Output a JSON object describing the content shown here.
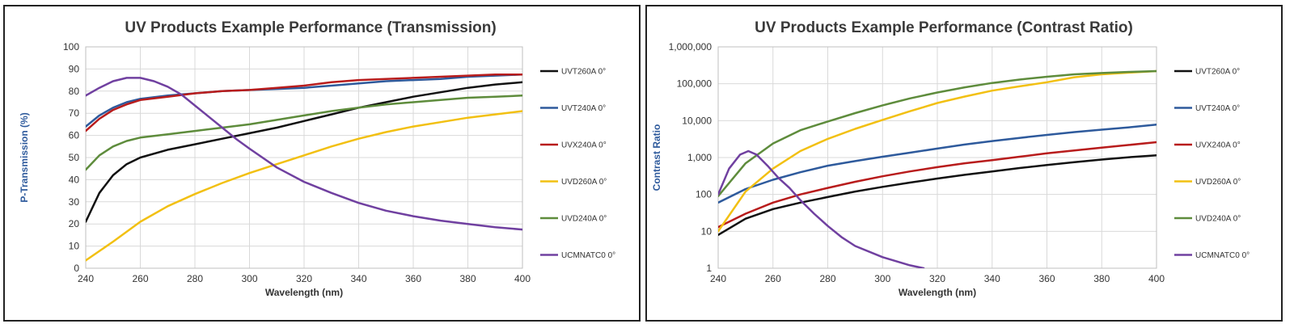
{
  "chart_data": [
    {
      "type": "line",
      "title": "UV Products Example Performance (Transmission)",
      "xlabel": "Wavelength (nm)",
      "ylabel": "P-Transmission (%)",
      "xlim": [
        240,
        400
      ],
      "ylim": [
        0,
        100
      ],
      "yscale": "linear",
      "xticks": [
        240,
        260,
        280,
        300,
        320,
        340,
        360,
        380,
        400
      ],
      "yticks": [
        0,
        10,
        20,
        30,
        40,
        50,
        60,
        70,
        80,
        90,
        100
      ],
      "xtick_labels": [
        "240",
        "260",
        "280",
        "300",
        "320",
        "340",
        "360",
        "380",
        "400"
      ],
      "ytick_labels": [
        "0",
        "10",
        "20",
        "30",
        "40",
        "50",
        "60",
        "70",
        "80",
        "90",
        "100"
      ],
      "grid": true,
      "legend_position": "right",
      "series": [
        {
          "name": "UVT260A 0°",
          "color": "#111111",
          "x": [
            240,
            245,
            250,
            255,
            260,
            270,
            280,
            290,
            300,
            310,
            320,
            330,
            340,
            350,
            360,
            370,
            380,
            390,
            400
          ],
          "y": [
            21,
            34,
            42,
            47,
            50,
            53.5,
            56,
            58.5,
            61,
            63.5,
            66.5,
            69.5,
            72.5,
            75,
            77.5,
            79.5,
            81.5,
            83,
            84
          ]
        },
        {
          "name": "UVT240A 0°",
          "color": "#2e5a9c",
          "x": [
            240,
            245,
            250,
            255,
            260,
            270,
            280,
            290,
            300,
            310,
            320,
            330,
            340,
            350,
            360,
            370,
            380,
            390,
            400
          ],
          "y": [
            64,
            69,
            72.5,
            75,
            76.5,
            78,
            79,
            80,
            80.5,
            81,
            81.5,
            82.5,
            83.5,
            84.5,
            85,
            85.5,
            86.5,
            87,
            87.5
          ]
        },
        {
          "name": "UVX240A 0°",
          "color": "#b81c1c",
          "x": [
            240,
            245,
            250,
            255,
            260,
            270,
            280,
            290,
            300,
            310,
            320,
            330,
            340,
            350,
            360,
            370,
            380,
            390,
            400
          ],
          "y": [
            62,
            67.5,
            71.5,
            74,
            76,
            77.5,
            79,
            80,
            80.5,
            81.5,
            82.5,
            84,
            85,
            85.5,
            86,
            86.5,
            87,
            87.5,
            87.5
          ]
        },
        {
          "name": "UVD260A  0°",
          "color": "#f2c012",
          "x": [
            240,
            250,
            260,
            270,
            280,
            290,
            300,
            310,
            320,
            330,
            340,
            350,
            360,
            370,
            380,
            390,
            400
          ],
          "y": [
            3.5,
            12,
            21,
            28,
            33.5,
            38.5,
            43,
            47,
            51,
            55,
            58.5,
            61.5,
            64,
            66,
            68,
            69.5,
            71
          ]
        },
        {
          "name": "UVD240A 0°",
          "color": "#5e8c3c",
          "x": [
            240,
            245,
            250,
            255,
            260,
            270,
            280,
            290,
            300,
            310,
            320,
            330,
            340,
            350,
            360,
            370,
            380,
            390,
            400
          ],
          "y": [
            44.5,
            51,
            55,
            57.5,
            59,
            60.5,
            62,
            63.5,
            65,
            67,
            69,
            71,
            72.5,
            74,
            75,
            76,
            77,
            77.5,
            78
          ]
        },
        {
          "name": "UCMNATC0 0°",
          "color": "#7040a0",
          "x": [
            240,
            245,
            250,
            255,
            260,
            265,
            270,
            275,
            280,
            285,
            290,
            295,
            300,
            310,
            320,
            330,
            340,
            350,
            360,
            370,
            380,
            390,
            400
          ],
          "y": [
            78,
            81.5,
            84.5,
            86,
            86,
            84.5,
            82,
            78.5,
            73.5,
            68.5,
            63.5,
            58.5,
            54,
            45.5,
            39,
            34,
            29.5,
            26,
            23.5,
            21.5,
            20,
            18.5,
            17.5
          ]
        }
      ]
    },
    {
      "type": "line",
      "title": "UV Products Example Performance (Contrast Ratio)",
      "xlabel": "Wavelength (nm)",
      "ylabel": "Contrast Ratio",
      "xlim": [
        240,
        400
      ],
      "ylim": [
        1,
        1000000
      ],
      "yscale": "log",
      "xticks": [
        240,
        260,
        280,
        300,
        320,
        340,
        360,
        380,
        400
      ],
      "yticks": [
        1,
        10,
        100,
        1000,
        10000,
        100000,
        1000000
      ],
      "xtick_labels": [
        "240",
        "260",
        "280",
        "300",
        "320",
        "340",
        "360",
        "380",
        "400"
      ],
      "ytick_labels": [
        "1",
        "10",
        "100",
        "1,000",
        "10,000",
        "100,000",
        "1,000,000"
      ],
      "grid": true,
      "legend_position": "right",
      "series": [
        {
          "name": "UVT260A 0°",
          "color": "#111111",
          "x": [
            240,
            250,
            260,
            270,
            280,
            290,
            300,
            310,
            320,
            330,
            340,
            350,
            360,
            370,
            380,
            390,
            400
          ],
          "y": [
            8,
            22,
            40,
            60,
            85,
            120,
            160,
            210,
            270,
            340,
            420,
            520,
            630,
            750,
            880,
            1020,
            1150
          ]
        },
        {
          "name": "UVT240A 0°",
          "color": "#2e5a9c",
          "x": [
            240,
            250,
            260,
            270,
            280,
            290,
            300,
            310,
            320,
            330,
            340,
            350,
            360,
            370,
            380,
            390,
            400
          ],
          "y": [
            60,
            140,
            250,
            400,
            600,
            800,
            1050,
            1350,
            1750,
            2250,
            2800,
            3400,
            4100,
            4900,
            5700,
            6600,
            7800
          ]
        },
        {
          "name": "UVX240A 0°",
          "color": "#b81c1c",
          "x": [
            240,
            250,
            260,
            270,
            280,
            290,
            300,
            310,
            320,
            330,
            340,
            350,
            360,
            370,
            380,
            390,
            400
          ],
          "y": [
            13,
            30,
            60,
            100,
            150,
            220,
            310,
            420,
            550,
            700,
            850,
            1050,
            1300,
            1550,
            1850,
            2200,
            2600
          ]
        },
        {
          "name": "UVD260A  0°",
          "color": "#f2c012",
          "x": [
            240,
            250,
            260,
            270,
            280,
            290,
            300,
            310,
            320,
            330,
            340,
            350,
            360,
            370,
            380,
            390,
            400
          ],
          "y": [
            10,
            120,
            500,
            1500,
            3200,
            6000,
            10500,
            18000,
            30000,
            45000,
            65000,
            85000,
            110000,
            150000,
            180000,
            200000,
            220000
          ]
        },
        {
          "name": "UVD240A 0°",
          "color": "#5e8c3c",
          "x": [
            240,
            250,
            260,
            270,
            280,
            290,
            300,
            310,
            320,
            330,
            340,
            350,
            360,
            370,
            380,
            390,
            400
          ],
          "y": [
            90,
            700,
            2400,
            5500,
            9500,
            16000,
            26000,
            40000,
            58000,
            80000,
            105000,
            130000,
            155000,
            180000,
            195000,
            210000,
            220000
          ]
        },
        {
          "name": "UCMNATC0 0°",
          "color": "#7040a0",
          "x": [
            240,
            244,
            248,
            251,
            254,
            258,
            262,
            266,
            270,
            275,
            280,
            285,
            290,
            300,
            310,
            315
          ],
          "y": [
            100,
            500,
            1200,
            1500,
            1200,
            600,
            280,
            150,
            70,
            30,
            14,
            7,
            4,
            2,
            1.2,
            1
          ]
        }
      ]
    }
  ]
}
